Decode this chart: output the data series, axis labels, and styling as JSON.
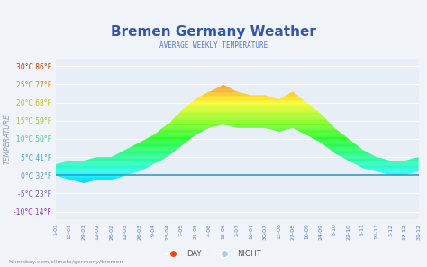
{
  "title": "Bremen Germany Weather",
  "subtitle": "AVERAGE WEEKLY TEMPERATURE",
  "ylabel": "TEMPERATURE",
  "watermark": "hikersbay.com/climate/germany/bremen",
  "yticks": [
    -10,
    -5,
    0,
    5,
    10,
    15,
    20,
    25,
    30
  ],
  "ytick_labels": [
    "-10°C 14°F",
    "-5°C 23°F",
    "0°C 32°F",
    "5°C 41°F",
    "10°C 50°F",
    "15°C 59°F",
    "20°C 68°F",
    "25°C 77°F",
    "30°C 86°F"
  ],
  "ylim": [
    -12,
    32
  ],
  "background_color": "#f0f4f8",
  "plot_bg_color": "#e8eef5",
  "title_color": "#3355aa",
  "subtitle_color": "#5577cc",
  "ytick_colors": [
    "#9933cc",
    "#7755bb",
    "#5599cc",
    "#33aacc",
    "#44cc88",
    "#99cc33",
    "#ccbb00",
    "#dd8800",
    "#cc3300"
  ],
  "xtick_labels": [
    "1-01",
    "15-01",
    "29-01",
    "12-02",
    "26-02",
    "12-03",
    "26-03",
    "9-04",
    "23-04",
    "7-05",
    "21-05",
    "4-06",
    "18-06",
    "2-07",
    "16-07",
    "30-07",
    "13-08",
    "27-08",
    "10-09",
    "24-09",
    "8-10",
    "22-10",
    "5-11",
    "19-11",
    "3-12",
    "17-12",
    "31-12"
  ],
  "day_data": [
    3,
    4,
    4,
    5,
    5,
    7,
    9,
    11,
    14,
    18,
    21,
    23,
    25,
    23,
    22,
    22,
    21,
    23,
    20,
    17,
    13,
    10,
    7,
    5,
    4,
    4,
    5
  ],
  "night_data": [
    0,
    -1,
    -2,
    -1,
    -1,
    0,
    1,
    3,
    5,
    8,
    11,
    13,
    14,
    13,
    13,
    13,
    12,
    13,
    11,
    9,
    6,
    4,
    2,
    1,
    0,
    0,
    1
  ],
  "legend_day_color": "#ff4400",
  "legend_night_color": "#aaccee"
}
